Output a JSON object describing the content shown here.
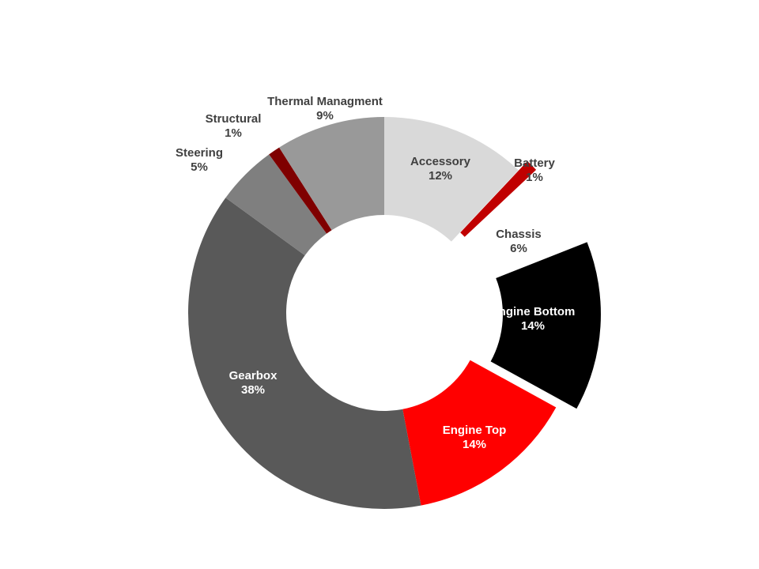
{
  "chart_data": {
    "type": "pie",
    "variant": "donut",
    "title": "",
    "categories": [
      "Accessory",
      "Battery",
      "Chassis",
      "Engine Bottom",
      "Engine Top",
      "Gearbox",
      "Steering",
      "Structural",
      "Thermal Managment"
    ],
    "values": [
      12,
      1,
      6,
      14,
      14,
      38,
      5,
      1,
      9
    ],
    "value_labels": [
      "12%",
      "1%",
      "6%",
      "14%",
      "14%",
      "38%",
      "5%",
      "1%",
      "9%"
    ],
    "unit": "%",
    "legend": "none",
    "slice_colors": [
      "#d9d9d9",
      "#c00000",
      "#ffffff",
      "#000000",
      "#ff0000",
      "#595959",
      "#7f7f7f",
      "#7f0000",
      "#999999"
    ],
    "label_colors": [
      "#404040",
      "#404040",
      "#404040",
      "#ffffff",
      "#ffffff",
      "#ffffff",
      "#404040",
      "#404040",
      "#404040"
    ],
    "label_position": "inside for large slices, outside for small slices",
    "start_angle": "12 o'clock, clockwise",
    "exploded_slices": [
      "Battery",
      "Chassis",
      "Engine Bottom"
    ]
  }
}
